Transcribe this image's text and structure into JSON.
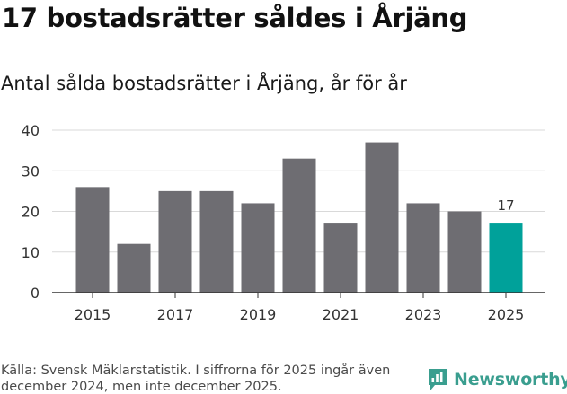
{
  "title": "17 bostadsrätter såldes i Årjäng",
  "subtitle": "Antal sålda bostadsrätter i Årjäng, år för år",
  "source": "Källa: Svensk Mäklarstatistik. I siffrorna för 2025 ingår även december 2024, men inte december 2025.",
  "logo": {
    "text": "Newsworthy",
    "icon": "newsworthy-logo-icon",
    "color": "#3a9e8f"
  },
  "chart_data": {
    "type": "bar",
    "title": "Antal sålda bostadsrätter i Årjäng, år för år",
    "xlabel": "",
    "ylabel": "",
    "categories": [
      "2015",
      "2016",
      "2017",
      "2018",
      "2019",
      "2020",
      "2021",
      "2022",
      "2023",
      "2024",
      "2025"
    ],
    "values": [
      26,
      12,
      25,
      25,
      22,
      33,
      17,
      37,
      22,
      20,
      17
    ],
    "x_tick_labels": [
      "2015",
      "2017",
      "2019",
      "2021",
      "2023",
      "2025"
    ],
    "y_ticks": [
      0,
      10,
      20,
      30,
      40
    ],
    "ylim": [
      0,
      40
    ],
    "grid": true,
    "annotations": [
      {
        "category": "2025",
        "text": "17"
      }
    ],
    "colors": {
      "default": "#6e6d72",
      "highlight": "#00a19a",
      "grid": "#d9d9d9",
      "axis": "#333333"
    },
    "highlight_category": "2025"
  }
}
